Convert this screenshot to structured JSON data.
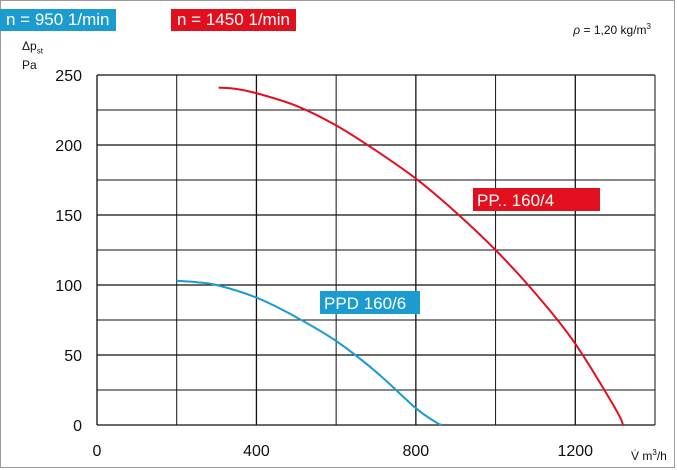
{
  "speed_labels": {
    "low": "n = 950 1/min",
    "high": "n = 1450 1/min"
  },
  "density": {
    "symbol": "ρ",
    "text": "= 1,20 kg/m",
    "exp": "3"
  },
  "y_axis": {
    "symbol": "Δp",
    "sub": "st",
    "unit": "Pa"
  },
  "x_axis": {
    "symbol": "V̇",
    "unit": "m",
    "exp": "3",
    "unit_tail": "/h"
  },
  "colors": {
    "low": "#1b9bd0",
    "high": "#e2101f",
    "grid": "#111111",
    "border": "#9a9a9a"
  },
  "chart_data": {
    "type": "line",
    "title": "",
    "xlim": [
      0,
      1400
    ],
    "ylim": [
      0,
      250
    ],
    "x_ticks": [
      0,
      400,
      800,
      1200
    ],
    "y_ticks": [
      0,
      50,
      100,
      150,
      200,
      250
    ],
    "grid": true,
    "series": [
      {
        "name": "PPD 160/6",
        "color": "#1b9bd0",
        "x": [
          200,
          250,
          300,
          400,
          500,
          600,
          700,
          800,
          850,
          865
        ],
        "y": [
          103,
          102,
          100,
          91,
          77,
          60,
          38,
          12,
          2,
          0
        ]
      },
      {
        "name": "PP.. 160/4",
        "color": "#e2101f",
        "x": [
          305,
          350,
          400,
          500,
          600,
          700,
          800,
          900,
          1000,
          1100,
          1200,
          1300,
          1320
        ],
        "y": [
          241,
          240,
          237,
          228,
          214,
          196,
          176,
          152,
          125,
          94,
          58,
          12,
          0
        ]
      }
    ]
  }
}
